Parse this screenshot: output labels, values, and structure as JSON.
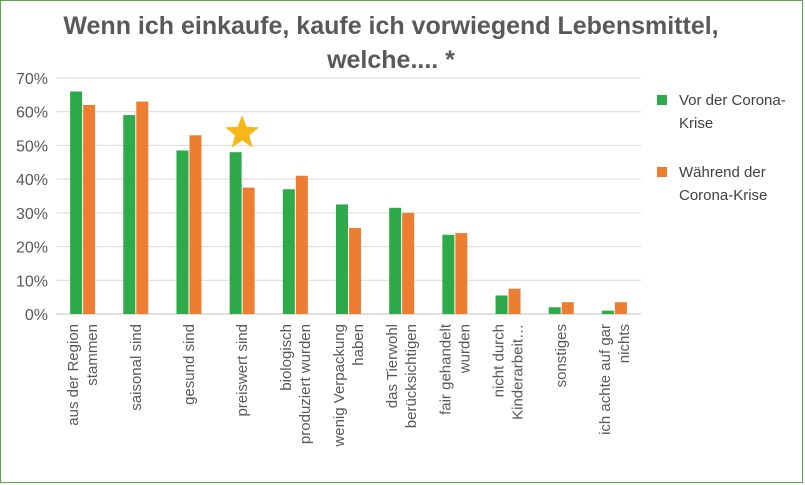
{
  "title_line1": "Wenn ich einkaufe, kaufe ich vorwiegend Lebensmittel,",
  "title_line2": "welche....   *",
  "colors": {
    "before": "#2eaa4a",
    "during": "#ed7d31",
    "star": "#f5b818",
    "grid": "#d9d9d9",
    "axis_text": "#595959"
  },
  "legend": {
    "position": "right"
  },
  "chart_data": {
    "type": "bar",
    "title": "Wenn ich einkaufe, kaufe ich vorwiegend Lebensmittel, welche....   *",
    "categories": [
      [
        "aus der Region",
        "stammen"
      ],
      [
        "saisonal sind"
      ],
      [
        "gesund sind"
      ],
      [
        "preiswert sind"
      ],
      [
        "biologisch",
        "produziert wurden"
      ],
      [
        "wenig Verpackung",
        "haben"
      ],
      [
        "das Tierwohl",
        "berücksichtigen"
      ],
      [
        "fair gehandelt",
        "wurden"
      ],
      [
        "nicht durch",
        "Kinderarbeit…"
      ],
      [
        "sonstiges"
      ],
      [
        "ich achte auf gar",
        "nichts"
      ]
    ],
    "series": [
      {
        "name": "Vor der Corona-Krise",
        "color": "#2eaa4a",
        "values": [
          66,
          59,
          48.5,
          48,
          37,
          32.5,
          31.5,
          23.5,
          5.5,
          2,
          1
        ]
      },
      {
        "name": "Während der Corona-Krise",
        "color": "#ed7d31",
        "values": [
          62,
          63,
          53,
          37.5,
          41,
          25.5,
          30,
          24,
          7.5,
          3.5,
          3.5
        ]
      }
    ],
    "ylim": [
      0,
      70
    ],
    "yticks": [
      "0%",
      "10%",
      "20%",
      "30%",
      "40%",
      "50%",
      "60%",
      "70%"
    ],
    "grid": true,
    "highlight": {
      "category_index": 3,
      "marker": "star"
    }
  }
}
